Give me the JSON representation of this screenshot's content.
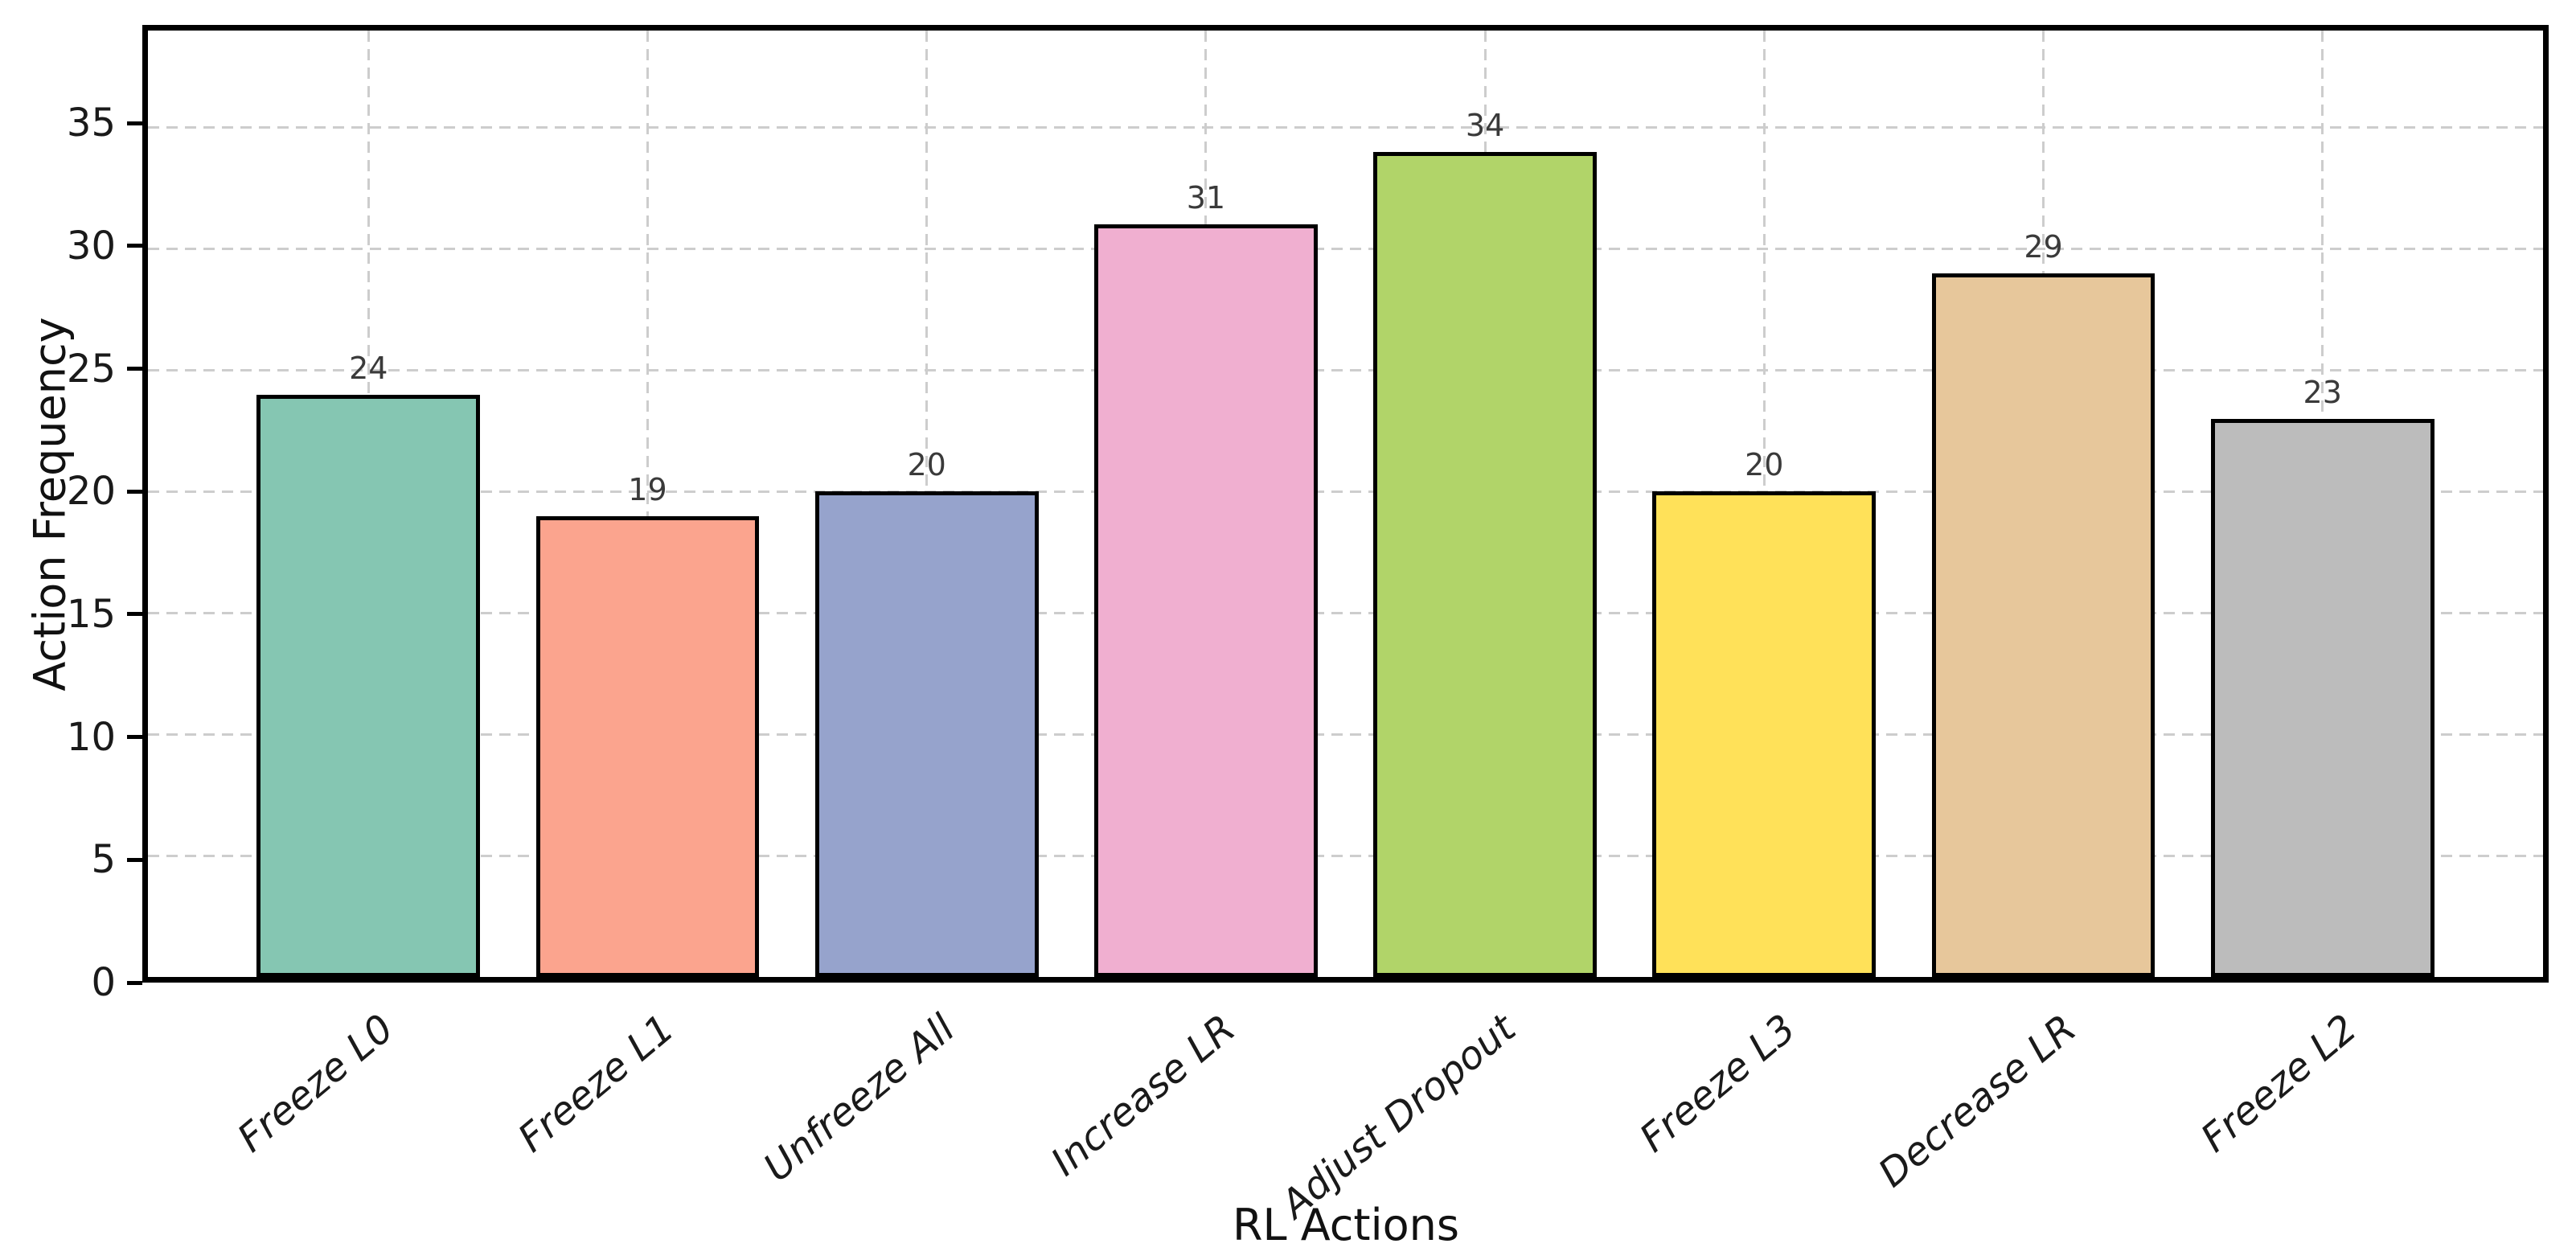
{
  "chart_data": {
    "type": "bar",
    "title": "",
    "xlabel": "RL Actions",
    "ylabel": "Action Frequency",
    "categories": [
      "Freeze L0",
      "Freeze L1",
      "Unfreeze All",
      "Increase LR",
      "Adjust Dropout",
      "Freeze L3",
      "Decrease LR",
      "Freeze L2"
    ],
    "values": [
      24,
      19,
      20,
      31,
      34,
      20,
      29,
      23
    ],
    "value_labels": [
      "24",
      "19",
      "20",
      "31",
      "34",
      "20",
      "29",
      "23"
    ],
    "bar_colors": [
      "#85c6b2",
      "#fba48e",
      "#96a3cc",
      "#f0afd0",
      "#b1d469",
      "#ffe159",
      "#e7c79b",
      "#bcbcbc"
    ],
    "yticks": [
      0,
      5,
      10,
      15,
      20,
      25,
      30,
      35
    ],
    "ytick_labels": [
      "0",
      "5",
      "10",
      "15",
      "20",
      "25",
      "30",
      "35"
    ],
    "ylim": [
      0,
      39
    ],
    "grid": true,
    "grid_style": "dashed",
    "legend_position": "none",
    "colors": {
      "bar_edge": "#000000",
      "grid": "#cdcdcd",
      "value_label": "#3a3a3a",
      "tick_label": "#1a1a1a",
      "axis_label": "#111111",
      "spine": "#000000",
      "background": "#ffffff"
    }
  }
}
